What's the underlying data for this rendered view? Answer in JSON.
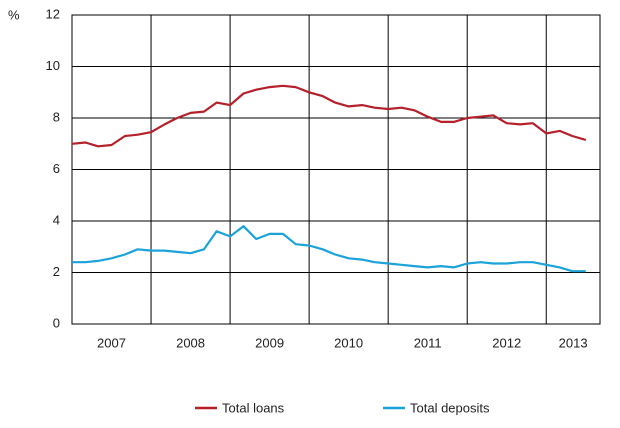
{
  "chart_data": {
    "type": "line",
    "y_unit_label": "%",
    "x": [
      2007,
      2007.17,
      2007.33,
      2007.5,
      2007.67,
      2007.83,
      2008,
      2008.17,
      2008.33,
      2008.5,
      2008.67,
      2008.83,
      2009,
      2009.17,
      2009.33,
      2009.5,
      2009.67,
      2009.83,
      2010,
      2010.17,
      2010.33,
      2010.5,
      2010.67,
      2010.83,
      2011,
      2011.17,
      2011.33,
      2011.5,
      2011.67,
      2011.83,
      2012,
      2012.17,
      2012.33,
      2012.5,
      2012.67,
      2012.83,
      2013,
      2013.17,
      2013.33,
      2013.5
    ],
    "series": [
      {
        "name": "Total loans",
        "color": "#b5202a",
        "values": [
          7.0,
          7.05,
          6.9,
          6.95,
          7.3,
          7.35,
          7.45,
          7.75,
          8.0,
          8.2,
          8.25,
          8.6,
          8.5,
          8.95,
          9.1,
          9.2,
          9.25,
          9.2,
          9.0,
          8.85,
          8.6,
          8.45,
          8.5,
          8.4,
          8.35,
          8.4,
          8.3,
          8.05,
          7.85,
          7.85,
          8.0,
          8.05,
          8.1,
          7.8,
          7.75,
          7.8,
          7.4,
          7.5,
          7.3,
          7.15
        ]
      },
      {
        "name": "Total deposits",
        "color": "#1ba3d9",
        "values": [
          2.4,
          2.4,
          2.45,
          2.55,
          2.7,
          2.9,
          2.85,
          2.85,
          2.8,
          2.75,
          2.9,
          3.6,
          3.4,
          3.8,
          3.3,
          3.5,
          3.5,
          3.1,
          3.05,
          2.9,
          2.7,
          2.55,
          2.5,
          2.4,
          2.35,
          2.3,
          2.25,
          2.2,
          2.25,
          2.2,
          2.35,
          2.4,
          2.35,
          2.35,
          2.4,
          2.4,
          2.3,
          2.2,
          2.05,
          2.05
        ]
      }
    ],
    "xlim": [
      2007,
      2013.68
    ],
    "xticks": [
      {
        "value": 2007.5,
        "label": "2007"
      },
      {
        "value": 2008.5,
        "label": "2008"
      },
      {
        "value": 2009.5,
        "label": "2009"
      },
      {
        "value": 2010.5,
        "label": "2010"
      },
      {
        "value": 2011.5,
        "label": "2011"
      },
      {
        "value": 2012.5,
        "label": "2012"
      },
      {
        "value": 2013.34,
        "label": "2013"
      }
    ],
    "xgrid": [
      2008,
      2009,
      2010,
      2011,
      2012,
      2013
    ],
    "ylim": [
      0,
      12
    ],
    "yticks": [
      0,
      2,
      4,
      6,
      8,
      10,
      12
    ],
    "grid": true,
    "legend": "bottom"
  }
}
